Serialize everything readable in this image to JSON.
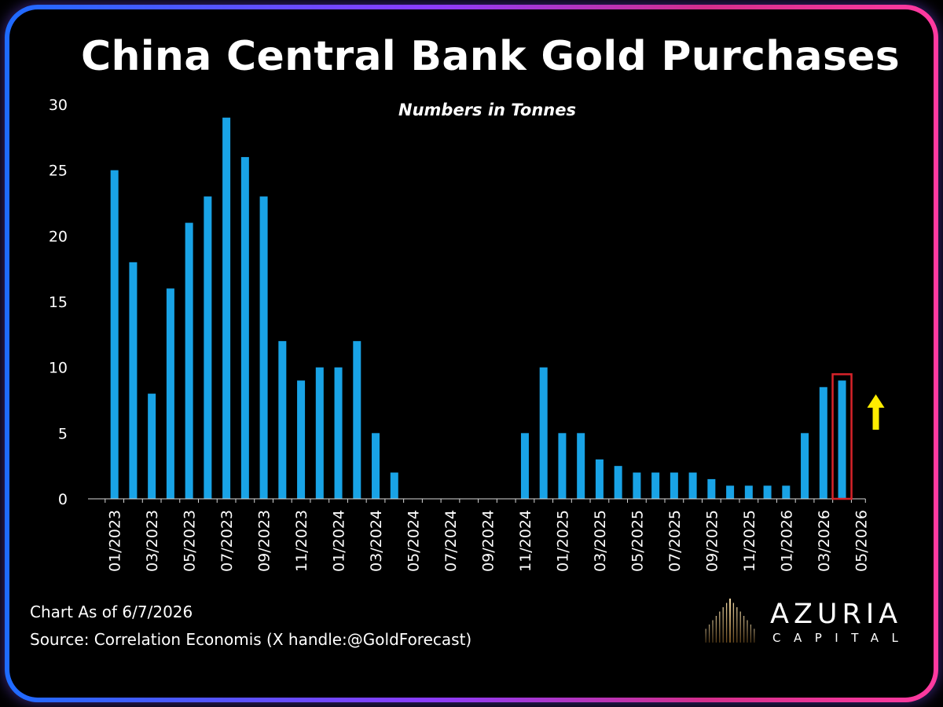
{
  "header": {
    "title": "China Central Bank Gold Purchases",
    "subtitle": "Numbers in Tonnes"
  },
  "footer": {
    "chart_date": "Chart As of 6/7/2026",
    "source": "Source: Correlation Economis (X handle:@GoldForecast)"
  },
  "logo": {
    "name": "AZURIA",
    "sub": "CAPITAL",
    "icon": "golden-rays-icon"
  },
  "colors": {
    "bar": "#19a3e6",
    "highlight": "#d8232a",
    "arrow": "#ffec00",
    "text": "#ffffff",
    "background": "#000000"
  },
  "chart_data": {
    "type": "bar",
    "title": "China Central Bank Gold Purchases",
    "subtitle": "Numbers in Tonnes",
    "ylim": [
      0,
      30
    ],
    "yticks": [
      0,
      5,
      10,
      15,
      20,
      25,
      30
    ],
    "grid": false,
    "categories": [
      "01/2023",
      "02/2023",
      "03/2023",
      "04/2023",
      "05/2023",
      "06/2023",
      "07/2023",
      "08/2023",
      "09/2023",
      "10/2023",
      "11/2023",
      "12/2023",
      "01/2024",
      "02/2024",
      "03/2024",
      "04/2024",
      "05/2024",
      "06/2024",
      "07/2024",
      "08/2024",
      "09/2024",
      "10/2024",
      "11/2024",
      "12/2024",
      "01/2025",
      "02/2025",
      "03/2025",
      "04/2025",
      "05/2025",
      "06/2025",
      "07/2025",
      "08/2025",
      "09/2025",
      "10/2025",
      "11/2025",
      "12/2025",
      "01/2026",
      "02/2026",
      "03/2026",
      "04/2026",
      "05/2026"
    ],
    "tick_labels": [
      "01/2023",
      "03/2023",
      "05/2023",
      "07/2023",
      "09/2023",
      "11/2023",
      "01/2024",
      "03/2024",
      "05/2024",
      "07/2024",
      "09/2024",
      "11/2024",
      "01/2025",
      "03/2025",
      "05/2025",
      "07/2025",
      "09/2025",
      "11/2025",
      "01/2026",
      "03/2026",
      "05/2026"
    ],
    "values": [
      25,
      18,
      8,
      16,
      21,
      23,
      29,
      26,
      23,
      12,
      9,
      10,
      10,
      12,
      5,
      2,
      0,
      0,
      0,
      0,
      0,
      0,
      5,
      10,
      5,
      5,
      3,
      2.5,
      2,
      2,
      2,
      2,
      1.5,
      1,
      1,
      1,
      1,
      5,
      8.5,
      9,
      0
    ],
    "highlight_category": "04/2026",
    "annotation": "up-arrow"
  }
}
